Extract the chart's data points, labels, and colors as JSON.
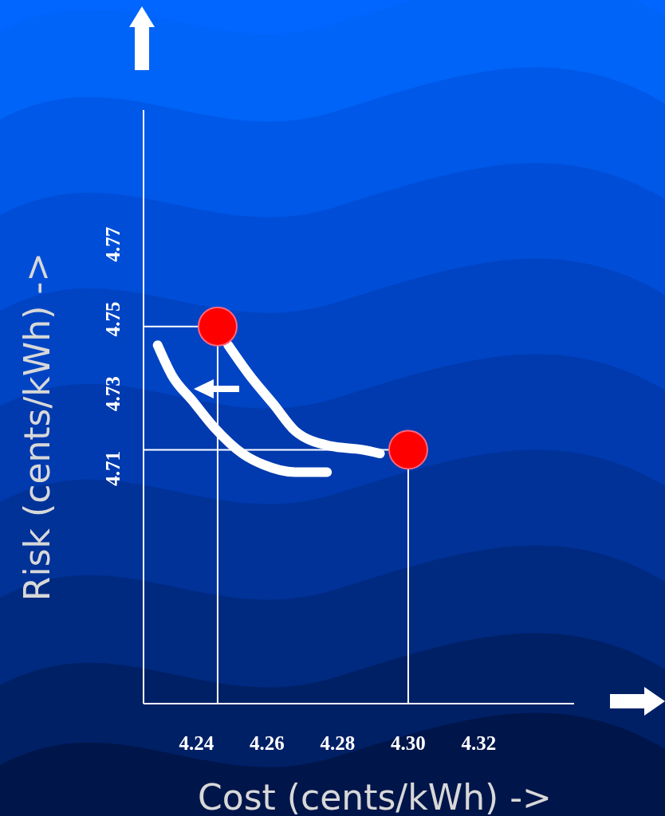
{
  "chart_data": {
    "type": "scatter",
    "xlabel": "Cost (cents/kWh) ->",
    "ylabel": "Risk (cents/kWh) ->",
    "xlim": [
      4.225,
      4.347
    ],
    "ylim": [
      4.647,
      4.806
    ],
    "xticks": [
      4.24,
      4.26,
      4.28,
      {
        "value": 4.3,
        "label": "4.30"
      },
      4.32
    ],
    "yticks": [
      4.71,
      4.73,
      4.75,
      4.77
    ],
    "series": [
      {
        "type": "line",
        "color": "#ffffff",
        "x": [
          4.229,
          4.233,
          4.239,
          4.245,
          4.253,
          4.259,
          4.268,
          4.277
        ],
        "values": [
          4.743,
          4.735,
          4.728,
          4.721,
          4.714,
          4.711,
          4.709,
          4.709
        ]
      },
      {
        "type": "line",
        "color": "#ffffff",
        "x": [
          4.249,
          4.255,
          4.262,
          4.268,
          4.278,
          4.287,
          4.292
        ],
        "values": [
          4.743,
          4.735,
          4.727,
          4.72,
          4.716,
          4.715,
          4.714
        ]
      },
      {
        "type": "step",
        "color": "#ffffff",
        "x": [
          4.225,
          4.246
        ],
        "values": [
          4.748,
          4.647
        ]
      },
      {
        "type": "step",
        "color": "#ffffff",
        "x": [
          4.225,
          4.3
        ],
        "values": [
          4.715,
          4.647
        ]
      },
      {
        "color": "#ff0000",
        "marker": "circle",
        "x": [
          4.246,
          4.3
        ],
        "values": [
          4.748,
          4.715
        ]
      }
    ]
  }
}
